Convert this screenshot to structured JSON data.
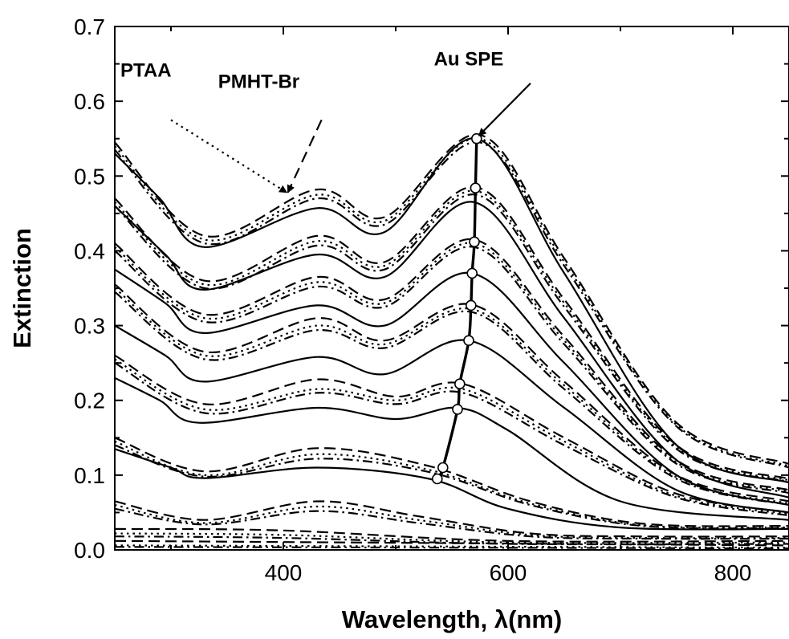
{
  "chart_data": {
    "type": "line",
    "title": "",
    "xlabel": "Wavelength, λ(nm)",
    "ylabel": "Extinction",
    "xlim": [
      250,
      850
    ],
    "ylim": [
      0,
      0.7
    ],
    "x_ticks": [
      400,
      600,
      800
    ],
    "y_ticks": [
      0.0,
      0.1,
      0.2,
      0.3,
      0.4,
      0.5,
      0.6,
      0.7
    ],
    "tick_labels_y": [
      "0.0",
      "0.1",
      "0.2",
      "0.3",
      "0.4",
      "0.5",
      "0.6",
      "0.7"
    ],
    "tick_labels_x": [
      "400",
      "600",
      "800"
    ],
    "grid": false,
    "legend": "none",
    "series": [
      {
        "style": "solid",
        "x": [
          250,
          300,
          330,
          430,
          530,
          600,
          700,
          850
        ],
        "y": [
          0.135,
          0.11,
          0.096,
          0.11,
          0.095,
          0.055,
          0.03,
          0.028
        ]
      },
      {
        "style": "solid",
        "x": [
          250,
          290,
          325,
          430,
          500,
          555,
          600,
          700,
          850
        ],
        "y": [
          0.23,
          0.2,
          0.17,
          0.19,
          0.175,
          0.19,
          0.16,
          0.065,
          0.04
        ]
      },
      {
        "style": "solid",
        "x": [
          250,
          295,
          330,
          430,
          490,
          565,
          650,
          750,
          850
        ],
        "y": [
          0.3,
          0.26,
          0.225,
          0.258,
          0.235,
          0.28,
          0.19,
          0.08,
          0.05
        ]
      },
      {
        "style": "solid",
        "x": [
          250,
          295,
          330,
          430,
          490,
          568,
          650,
          750,
          850
        ],
        "y": [
          0.375,
          0.33,
          0.29,
          0.327,
          0.3,
          0.37,
          0.25,
          0.1,
          0.06
        ]
      },
      {
        "style": "solid",
        "x": [
          250,
          295,
          330,
          430,
          490,
          570,
          650,
          750,
          850
        ],
        "y": [
          0.46,
          0.395,
          0.348,
          0.395,
          0.365,
          0.465,
          0.31,
          0.12,
          0.07
        ]
      },
      {
        "style": "solid",
        "x": [
          250,
          290,
          330,
          430,
          490,
          572,
          650,
          750,
          850
        ],
        "y": [
          0.53,
          0.47,
          0.405,
          0.457,
          0.425,
          0.55,
          0.37,
          0.14,
          0.09
        ]
      },
      {
        "style": "dashed",
        "x": [
          250,
          330,
          430,
          530,
          620,
          720,
          850
        ],
        "y": [
          0.15,
          0.105,
          0.136,
          0.112,
          0.065,
          0.035,
          0.032
        ]
      },
      {
        "style": "dotted",
        "x": [
          250,
          330,
          430,
          530,
          620,
          720,
          850
        ],
        "y": [
          0.145,
          0.1,
          0.128,
          0.107,
          0.062,
          0.033,
          0.03
        ]
      },
      {
        "style": "dashdot",
        "x": [
          250,
          330,
          430,
          530,
          620,
          720,
          850
        ],
        "y": [
          0.14,
          0.098,
          0.122,
          0.104,
          0.06,
          0.032,
          0.029
        ]
      },
      {
        "style": "dashed",
        "x": [
          250,
          330,
          430,
          500,
          560,
          650,
          750,
          850
        ],
        "y": [
          0.26,
          0.195,
          0.228,
          0.205,
          0.222,
          0.15,
          0.075,
          0.05
        ]
      },
      {
        "style": "dotted",
        "x": [
          250,
          330,
          430,
          500,
          560,
          650,
          750,
          850
        ],
        "y": [
          0.255,
          0.188,
          0.215,
          0.2,
          0.215,
          0.145,
          0.072,
          0.048
        ]
      },
      {
        "style": "dashdot",
        "x": [
          250,
          330,
          430,
          500,
          560,
          650,
          750,
          850
        ],
        "y": [
          0.25,
          0.183,
          0.21,
          0.195,
          0.21,
          0.14,
          0.07,
          0.046
        ]
      },
      {
        "style": "dashed",
        "x": [
          250,
          330,
          430,
          490,
          568,
          650,
          750,
          850
        ],
        "y": [
          0.355,
          0.265,
          0.31,
          0.28,
          0.328,
          0.225,
          0.1,
          0.065
        ]
      },
      {
        "style": "dotted",
        "x": [
          250,
          330,
          430,
          490,
          568,
          650,
          750,
          850
        ],
        "y": [
          0.35,
          0.26,
          0.3,
          0.275,
          0.322,
          0.22,
          0.097,
          0.062
        ]
      },
      {
        "style": "dashdot",
        "x": [
          250,
          330,
          430,
          490,
          568,
          650,
          750,
          850
        ],
        "y": [
          0.345,
          0.255,
          0.294,
          0.27,
          0.318,
          0.215,
          0.095,
          0.06
        ]
      },
      {
        "style": "dashed",
        "x": [
          250,
          330,
          430,
          490,
          570,
          650,
          750,
          850
        ],
        "y": [
          0.41,
          0.315,
          0.365,
          0.335,
          0.415,
          0.285,
          0.12,
          0.08
        ]
      },
      {
        "style": "dotted",
        "x": [
          250,
          330,
          430,
          490,
          570,
          650,
          750,
          850
        ],
        "y": [
          0.405,
          0.31,
          0.358,
          0.33,
          0.41,
          0.28,
          0.117,
          0.078
        ]
      },
      {
        "style": "dashdot",
        "x": [
          250,
          330,
          430,
          490,
          570,
          650,
          750,
          850
        ],
        "y": [
          0.4,
          0.305,
          0.352,
          0.325,
          0.405,
          0.275,
          0.115,
          0.076
        ]
      },
      {
        "style": "dashed",
        "x": [
          250,
          330,
          430,
          490,
          572,
          650,
          750,
          850
        ],
        "y": [
          0.47,
          0.36,
          0.42,
          0.385,
          0.485,
          0.335,
          0.14,
          0.095
        ]
      },
      {
        "style": "dotted",
        "x": [
          250,
          330,
          430,
          490,
          572,
          650,
          750,
          850
        ],
        "y": [
          0.465,
          0.355,
          0.413,
          0.38,
          0.48,
          0.33,
          0.137,
          0.093
        ]
      },
      {
        "style": "dashdot",
        "x": [
          250,
          330,
          430,
          490,
          572,
          650,
          750,
          850
        ],
        "y": [
          0.46,
          0.35,
          0.407,
          0.375,
          0.475,
          0.325,
          0.135,
          0.091
        ]
      },
      {
        "style": "dashed",
        "x": [
          250,
          330,
          430,
          490,
          575,
          650,
          750,
          850
        ],
        "y": [
          0.545,
          0.42,
          0.482,
          0.445,
          0.555,
          0.39,
          0.17,
          0.115
        ]
      },
      {
        "style": "dotted",
        "x": [
          250,
          330,
          430,
          490,
          575,
          650,
          750,
          850
        ],
        "y": [
          0.54,
          0.415,
          0.475,
          0.44,
          0.55,
          0.385,
          0.167,
          0.112
        ]
      },
      {
        "style": "dashdot",
        "x": [
          250,
          330,
          430,
          490,
          575,
          650,
          750,
          850
        ],
        "y": [
          0.535,
          0.41,
          0.47,
          0.435,
          0.545,
          0.38,
          0.165,
          0.11
        ]
      },
      {
        "style": "dashed",
        "x": [
          250,
          330,
          430,
          520,
          620,
          720,
          850
        ],
        "y": [
          0.065,
          0.04,
          0.065,
          0.045,
          0.022,
          0.018,
          0.018
        ]
      },
      {
        "style": "dotted",
        "x": [
          250,
          330,
          430,
          520,
          620,
          720,
          850
        ],
        "y": [
          0.06,
          0.036,
          0.058,
          0.04,
          0.02,
          0.016,
          0.016
        ]
      },
      {
        "style": "dashdot",
        "x": [
          250,
          330,
          430,
          520,
          620,
          720,
          850
        ],
        "y": [
          0.055,
          0.034,
          0.052,
          0.036,
          0.018,
          0.015,
          0.015
        ]
      },
      {
        "style": "dashed",
        "x": [
          250,
          400,
          600,
          850
        ],
        "y": [
          0.028,
          0.026,
          0.012,
          0.012
        ]
      },
      {
        "style": "dotted",
        "x": [
          250,
          400,
          600,
          850
        ],
        "y": [
          0.022,
          0.02,
          0.01,
          0.01
        ]
      },
      {
        "style": "dashdot",
        "x": [
          250,
          400,
          600,
          850
        ],
        "y": [
          0.018,
          0.016,
          0.008,
          0.008
        ]
      },
      {
        "style": "dashed",
        "x": [
          250,
          850
        ],
        "y": [
          0.012,
          0.006
        ]
      },
      {
        "style": "dotted",
        "x": [
          250,
          850
        ],
        "y": [
          0.006,
          0.003
        ]
      },
      {
        "style": "dashdot",
        "x": [
          250,
          850
        ],
        "y": [
          0.004,
          0.002
        ]
      }
    ],
    "peak_trace": {
      "x": [
        537,
        542,
        555,
        557,
        565,
        567,
        568,
        570,
        571,
        572
      ],
      "y": [
        0.095,
        0.11,
        0.188,
        0.222,
        0.28,
        0.327,
        0.37,
        0.412,
        0.484,
        0.55
      ]
    },
    "annotations": [
      {
        "text": "PTAA",
        "text_at": [
          255,
          0.633
        ],
        "arrow_from": [
          300,
          0.575
        ],
        "arrow_to": [
          403,
          0.478
        ],
        "style": "dotted"
      },
      {
        "text": "PMHT-Br",
        "text_at": [
          342,
          0.618
        ],
        "arrow_from": [
          434,
          0.575
        ],
        "arrow_to": [
          404,
          0.478
        ],
        "style": "dashed"
      },
      {
        "text": "Au SPE",
        "text_at": [
          534,
          0.648
        ],
        "arrow_from": [
          620,
          0.624
        ],
        "arrow_to": [
          574,
          0.554
        ],
        "style": "solid"
      }
    ]
  }
}
